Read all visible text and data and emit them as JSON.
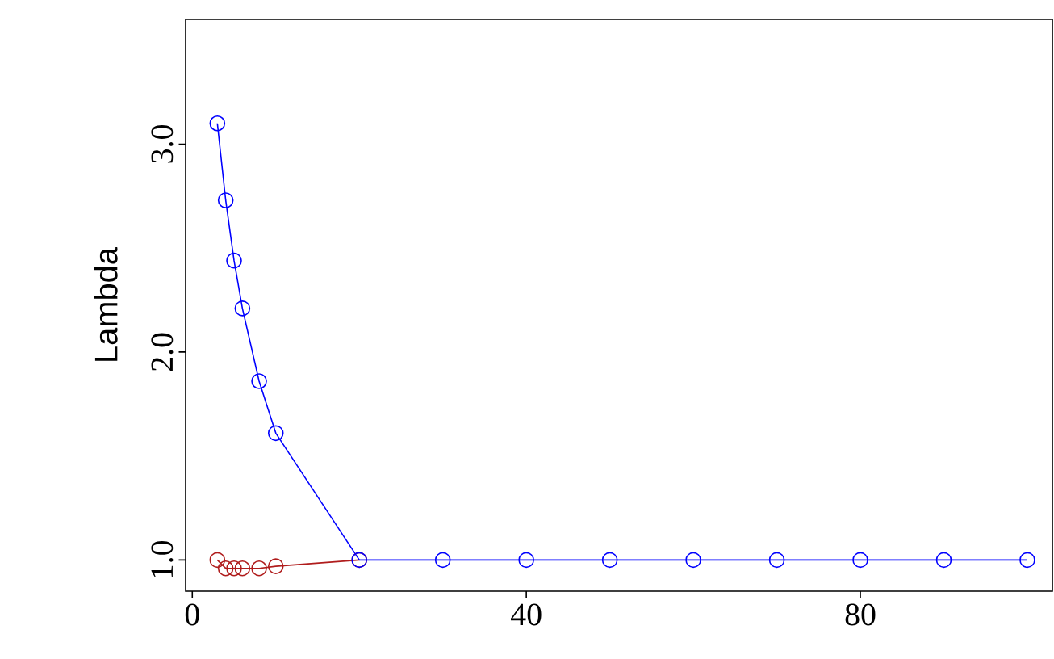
{
  "chart_data": {
    "type": "line",
    "ylabel": "Lambda",
    "xlim": [
      -0.8,
      103
    ],
    "ylim": [
      0.85,
      3.6
    ],
    "xticks": [
      0,
      40,
      80
    ],
    "yticks": [
      {
        "value": 1,
        "label": "1.0"
      },
      {
        "value": 2,
        "label": "2.0"
      },
      {
        "value": 3,
        "label": "3.0"
      }
    ],
    "marker": "circle",
    "line_style": "solid",
    "series": [
      {
        "color": "#b01c1c",
        "x": [
          3,
          4,
          5,
          6,
          8,
          10,
          20
        ],
        "values": [
          1.0,
          0.96,
          0.96,
          0.96,
          0.96,
          0.97,
          1.0
        ]
      },
      {
        "color": "#0000ff",
        "x": [
          3,
          4,
          5,
          6,
          8,
          10,
          20,
          30,
          40,
          50,
          60,
          70,
          80,
          90,
          100
        ],
        "values": [
          3.1,
          2.73,
          2.44,
          2.21,
          1.86,
          1.61,
          1.0,
          1.0,
          1.0,
          1.0,
          1.0,
          1.0,
          1.0,
          1.0,
          1.0
        ]
      }
    ]
  }
}
